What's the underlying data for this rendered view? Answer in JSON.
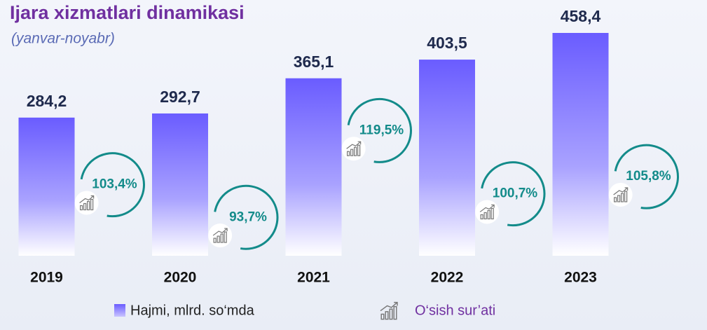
{
  "chart_data": {
    "type": "bar",
    "title": "Ijara xizmatlari dinamikasi",
    "subtitle": "(yanvar-noyabr)",
    "categories": [
      "2019",
      "2020",
      "2021",
      "2022",
      "2023"
    ],
    "series": [
      {
        "name": "Hajmi, mlrd. so‘mda",
        "color": "#6a5cff",
        "values": [
          284.2,
          292.7,
          365.1,
          403.5,
          458.4
        ],
        "value_labels": [
          "284,2",
          "292,7",
          "365,1",
          "403,5",
          "458,4"
        ]
      }
    ],
    "growth": {
      "name": "O‘sish sur’ati",
      "color": "#138b8a",
      "values": [
        103.4,
        93.7,
        119.5,
        100.7,
        105.8
      ],
      "value_labels": [
        "103,4%",
        "93,7%",
        "119,5%",
        "100,7%",
        "105,8%"
      ]
    }
  }
}
